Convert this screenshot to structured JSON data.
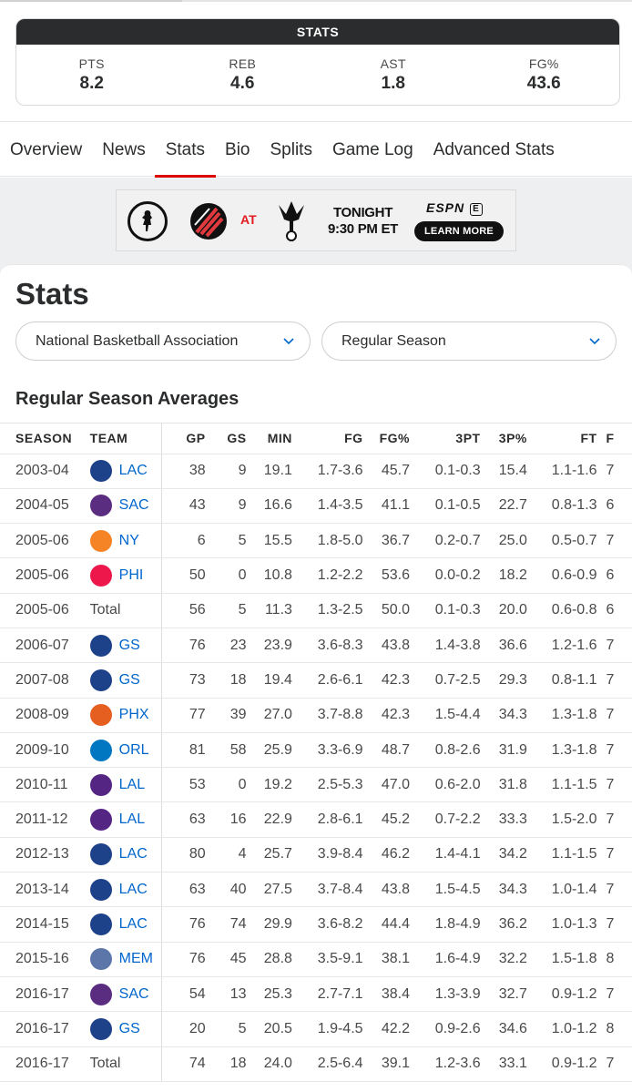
{
  "summary": {
    "title": "STATS",
    "stats": [
      {
        "label": "PTS",
        "value": "8.2"
      },
      {
        "label": "REB",
        "value": "4.6"
      },
      {
        "label": "AST",
        "value": "1.8"
      },
      {
        "label": "FG%",
        "value": "43.6"
      }
    ]
  },
  "tabs": [
    {
      "label": "Overview",
      "active": false
    },
    {
      "label": "News",
      "active": false
    },
    {
      "label": "Stats",
      "active": true
    },
    {
      "label": "Bio",
      "active": false
    },
    {
      "label": "Splits",
      "active": false
    },
    {
      "label": "Game Log",
      "active": false
    },
    {
      "label": "Advanced Stats",
      "active": false
    }
  ],
  "ad": {
    "at": "AT",
    "when_line1": "TONIGHT",
    "when_line2": "9:30 PM ET",
    "network": "ESPN",
    "cta": "LEARN MORE"
  },
  "page": {
    "title": "Stats",
    "league_select": "National Basketball Association",
    "season_select": "Regular Season",
    "section_title": "Regular Season Averages"
  },
  "table": {
    "columns": [
      "SEASON",
      "TEAM",
      "GP",
      "GS",
      "MIN",
      "FG",
      "FG%",
      "3PT",
      "3P%",
      "FT",
      "F"
    ],
    "rows": [
      {
        "season": "2003-04",
        "team": "LAC",
        "logo": "clippers",
        "gp": "38",
        "gs": "9",
        "min": "19.1",
        "fg": "1.7-3.6",
        "fgp": "45.7",
        "tpt": "0.1-0.3",
        "tpp": "15.4",
        "ft": "1.1-1.6",
        "x": "7"
      },
      {
        "season": "2004-05",
        "team": "SAC",
        "logo": "kings",
        "gp": "43",
        "gs": "9",
        "min": "16.6",
        "fg": "1.4-3.5",
        "fgp": "41.1",
        "tpt": "0.1-0.5",
        "tpp": "22.7",
        "ft": "0.8-1.3",
        "x": "6"
      },
      {
        "season": "2005-06",
        "team": "NY",
        "logo": "knicks",
        "gp": "6",
        "gs": "5",
        "min": "15.5",
        "fg": "1.8-5.0",
        "fgp": "36.7",
        "tpt": "0.2-0.7",
        "tpp": "25.0",
        "ft": "0.5-0.7",
        "x": "7"
      },
      {
        "season": "2005-06",
        "team": "PHI",
        "logo": "sixers",
        "gp": "50",
        "gs": "0",
        "min": "10.8",
        "fg": "1.2-2.2",
        "fgp": "53.6",
        "tpt": "0.0-0.2",
        "tpp": "18.2",
        "ft": "0.6-0.9",
        "x": "6"
      },
      {
        "season": "2005-06",
        "team": "Total",
        "logo": "",
        "gp": "56",
        "gs": "5",
        "min": "11.3",
        "fg": "1.3-2.5",
        "fgp": "50.0",
        "tpt": "0.1-0.3",
        "tpp": "20.0",
        "ft": "0.6-0.8",
        "x": "6"
      },
      {
        "season": "2006-07",
        "team": "GS",
        "logo": "warriors",
        "gp": "76",
        "gs": "23",
        "min": "23.9",
        "fg": "3.6-8.3",
        "fgp": "43.8",
        "tpt": "1.4-3.8",
        "tpp": "36.6",
        "ft": "1.2-1.6",
        "x": "7"
      },
      {
        "season": "2007-08",
        "team": "GS",
        "logo": "warriors",
        "gp": "73",
        "gs": "18",
        "min": "19.4",
        "fg": "2.6-6.1",
        "fgp": "42.3",
        "tpt": "0.7-2.5",
        "tpp": "29.3",
        "ft": "0.8-1.1",
        "x": "7"
      },
      {
        "season": "2008-09",
        "team": "PHX",
        "logo": "suns",
        "gp": "77",
        "gs": "39",
        "min": "27.0",
        "fg": "3.7-8.8",
        "fgp": "42.3",
        "tpt": "1.5-4.4",
        "tpp": "34.3",
        "ft": "1.3-1.8",
        "x": "7"
      },
      {
        "season": "2009-10",
        "team": "ORL",
        "logo": "magic",
        "gp": "81",
        "gs": "58",
        "min": "25.9",
        "fg": "3.3-6.9",
        "fgp": "48.7",
        "tpt": "0.8-2.6",
        "tpp": "31.9",
        "ft": "1.3-1.8",
        "x": "7"
      },
      {
        "season": "2010-11",
        "team": "LAL",
        "logo": "lakers",
        "gp": "53",
        "gs": "0",
        "min": "19.2",
        "fg": "2.5-5.3",
        "fgp": "47.0",
        "tpt": "0.6-2.0",
        "tpp": "31.8",
        "ft": "1.1-1.5",
        "x": "7"
      },
      {
        "season": "2011-12",
        "team": "LAL",
        "logo": "lakers",
        "gp": "63",
        "gs": "16",
        "min": "22.9",
        "fg": "2.8-6.1",
        "fgp": "45.2",
        "tpt": "0.7-2.2",
        "tpp": "33.3",
        "ft": "1.5-2.0",
        "x": "7"
      },
      {
        "season": "2012-13",
        "team": "LAC",
        "logo": "clippers",
        "gp": "80",
        "gs": "4",
        "min": "25.7",
        "fg": "3.9-8.4",
        "fgp": "46.2",
        "tpt": "1.4-4.1",
        "tpp": "34.2",
        "ft": "1.1-1.5",
        "x": "7"
      },
      {
        "season": "2013-14",
        "team": "LAC",
        "logo": "clippers",
        "gp": "63",
        "gs": "40",
        "min": "27.5",
        "fg": "3.7-8.4",
        "fgp": "43.8",
        "tpt": "1.5-4.5",
        "tpp": "34.3",
        "ft": "1.0-1.4",
        "x": "7"
      },
      {
        "season": "2014-15",
        "team": "LAC",
        "logo": "clippers",
        "gp": "76",
        "gs": "74",
        "min": "29.9",
        "fg": "3.6-8.2",
        "fgp": "44.4",
        "tpt": "1.8-4.9",
        "tpp": "36.2",
        "ft": "1.0-1.3",
        "x": "7"
      },
      {
        "season": "2015-16",
        "team": "MEM",
        "logo": "grizzlies",
        "gp": "76",
        "gs": "45",
        "min": "28.8",
        "fg": "3.5-9.1",
        "fgp": "38.1",
        "tpt": "1.6-4.9",
        "tpp": "32.2",
        "ft": "1.5-1.8",
        "x": "8"
      },
      {
        "season": "2016-17",
        "team": "SAC",
        "logo": "kings",
        "gp": "54",
        "gs": "13",
        "min": "25.3",
        "fg": "2.7-7.1",
        "fgp": "38.4",
        "tpt": "1.3-3.9",
        "tpp": "32.7",
        "ft": "0.9-1.2",
        "x": "7"
      },
      {
        "season": "2016-17",
        "team": "GS",
        "logo": "warriors",
        "gp": "20",
        "gs": "5",
        "min": "20.5",
        "fg": "1.9-4.5",
        "fgp": "42.2",
        "tpt": "0.9-2.6",
        "tpp": "34.6",
        "ft": "1.0-1.2",
        "x": "8"
      },
      {
        "season": "2016-17",
        "team": "Total",
        "logo": "",
        "gp": "74",
        "gs": "18",
        "min": "24.0",
        "fg": "2.5-6.4",
        "fgp": "39.1",
        "tpt": "1.2-3.6",
        "tpp": "33.1",
        "ft": "0.9-1.2",
        "x": "7"
      }
    ]
  },
  "logo_colors": {
    "clippers": "#1d428a",
    "kings": "#5a2d81",
    "knicks": "#f58426",
    "sixers": "#ed174c",
    "warriors": "#1d428a",
    "suns": "#e56020",
    "magic": "#0077c0",
    "lakers": "#552583",
    "grizzlies": "#5d76a9"
  },
  "accent_color": "#dd0000"
}
